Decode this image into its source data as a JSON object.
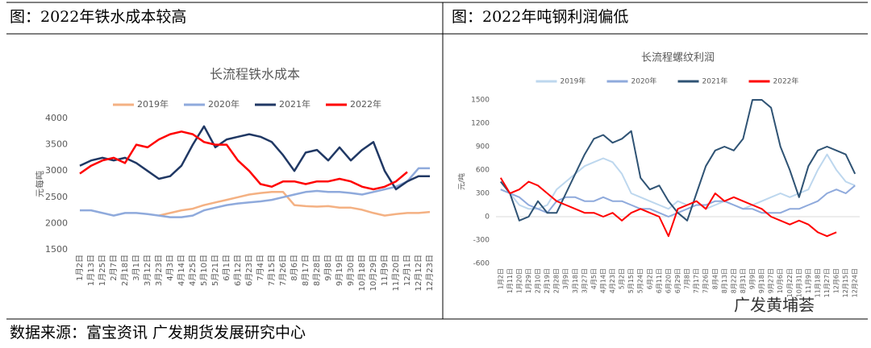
{
  "chart_data": [
    {
      "type": "line",
      "caption": "图：2022年铁水成本较高",
      "title": "长流程铁水成本",
      "ylabel": "元每吨",
      "legend": "top",
      "categories": [
        "1月2日",
        "1月13日",
        "1月25日",
        "2月7日",
        "2月18日",
        "3月1日",
        "3月12日",
        "3月23日",
        "4月3日",
        "4月14日",
        "4月25日",
        "5月10日",
        "5月21日",
        "6月1日",
        "6月12日",
        "6月23日",
        "7月4日",
        "7月15日",
        "7月26日",
        "8月6日",
        "8月17日",
        "8月28日",
        "9月8日",
        "9月19日",
        "9月30日",
        "10月18日",
        "10月29日",
        "11月9日",
        "11月20日",
        "12月1日",
        "12月12日",
        "12月23日"
      ],
      "series": [
        {
          "name": "2019年",
          "color": "#f4b183",
          "values": [
            null,
            null,
            null,
            null,
            null,
            null,
            null,
            2150,
            2200,
            2250,
            2280,
            2350,
            2400,
            2450,
            2500,
            2550,
            2580,
            2600,
            2600,
            2350,
            2330,
            2320,
            2330,
            2300,
            2300,
            2260,
            2200,
            2150,
            2180,
            2200,
            2200,
            2220
          ]
        },
        {
          "name": "2020年",
          "color": "#8faadc",
          "values": [
            2250,
            2250,
            2200,
            2150,
            2200,
            2200,
            2180,
            2150,
            2120,
            2120,
            2150,
            2250,
            2300,
            2350,
            2380,
            2400,
            2420,
            2450,
            2500,
            2550,
            2600,
            2620,
            2600,
            2600,
            2580,
            2550,
            2600,
            2650,
            2700,
            2800,
            3050,
            3050
          ]
        },
        {
          "name": "2021年",
          "color": "#203864",
          "values": [
            3100,
            3200,
            3250,
            3200,
            3250,
            3150,
            3000,
            2850,
            2900,
            3100,
            3500,
            3850,
            3450,
            3600,
            3650,
            3700,
            3650,
            3550,
            3300,
            3000,
            3350,
            3400,
            3200,
            3450,
            3200,
            3400,
            3550,
            3000,
            2650,
            2800,
            2900,
            2900
          ]
        },
        {
          "name": "2022年",
          "color": "#ff0000",
          "values": [
            2950,
            3100,
            3200,
            3250,
            3150,
            3500,
            3450,
            3600,
            3700,
            3750,
            3700,
            3550,
            3500,
            3500,
            3200,
            3000,
            2750,
            2700,
            2800,
            2800,
            2750,
            2800,
            2800,
            2850,
            2800,
            2700,
            2650,
            2700,
            2800,
            2980,
            null,
            null
          ]
        }
      ],
      "ylim": [
        1500,
        4000
      ],
      "yticks": [
        1500,
        2000,
        2500,
        3000,
        3500,
        4000
      ]
    },
    {
      "type": "line",
      "caption": "图：2022年吨钢利润偏低",
      "title": "长流程螺纹利润",
      "ylabel": "元/吨",
      "legend": "top",
      "categories": [
        "1月2日",
        "1月11日",
        "1月20日",
        "1月29日",
        "2月10日",
        "2月19日",
        "2月28日",
        "3月9日",
        "3月18日",
        "3月27日",
        "4月5日",
        "4月14日",
        "4月23日",
        "5月2日",
        "5月15日",
        "5月24日",
        "6月2日",
        "6月11日",
        "6月20日",
        "6月29日",
        "7月8日",
        "7月17日",
        "7月26日",
        "8月4日",
        "8月13日",
        "8月22日",
        "8月31日",
        "9月9日",
        "9月18日",
        "9月27日",
        "10月6日",
        "10月22日",
        "10月31日",
        "11月9日",
        "11月18日",
        "11月27日",
        "12月6日",
        "12月15日",
        "12月24日"
      ],
      "series": [
        {
          "name": "2019年",
          "color": "#bdd7ee",
          "values": [
            350,
            300,
            150,
            100,
            100,
            150,
            350,
            450,
            550,
            650,
            700,
            750,
            700,
            550,
            300,
            250,
            200,
            150,
            100,
            200,
            150,
            200,
            100,
            150,
            200,
            150,
            100,
            150,
            200,
            250,
            300,
            250,
            300,
            350,
            600,
            800,
            600,
            450,
            400
          ]
        },
        {
          "name": "2020年",
          "color": "#8faadc",
          "values": [
            350,
            300,
            250,
            150,
            100,
            50,
            200,
            250,
            250,
            200,
            200,
            250,
            200,
            200,
            150,
            100,
            100,
            50,
            0,
            50,
            100,
            150,
            150,
            200,
            200,
            150,
            100,
            100,
            50,
            50,
            50,
            100,
            100,
            150,
            200,
            300,
            350,
            300,
            400
          ]
        },
        {
          "name": "2021年",
          "color": "#2f5374",
          "values": [
            450,
            300,
            -50,
            0,
            200,
            50,
            50,
            300,
            550,
            800,
            1000,
            1050,
            950,
            1000,
            1100,
            500,
            350,
            400,
            200,
            50,
            -50,
            300,
            650,
            850,
            900,
            850,
            1000,
            1500,
            1500,
            1400,
            900,
            600,
            250,
            650,
            850,
            900,
            850,
            800,
            550
          ]
        },
        {
          "name": "2022年",
          "color": "#ff0000",
          "values": [
            500,
            300,
            350,
            450,
            400,
            300,
            200,
            150,
            100,
            50,
            50,
            0,
            50,
            -50,
            50,
            100,
            50,
            0,
            -250,
            100,
            150,
            200,
            100,
            300,
            200,
            250,
            200,
            150,
            100,
            0,
            -50,
            -100,
            -50,
            -100,
            -200,
            -250,
            -200,
            null,
            null
          ]
        }
      ],
      "ylim": [
        -600,
        1500
      ],
      "yticks": [
        -600,
        -300,
        0,
        300,
        600,
        900,
        1200,
        1500
      ]
    }
  ],
  "source": "数据来源：富宝资讯 广发期货发展研究中心",
  "watermark": "广发黄埔荟"
}
